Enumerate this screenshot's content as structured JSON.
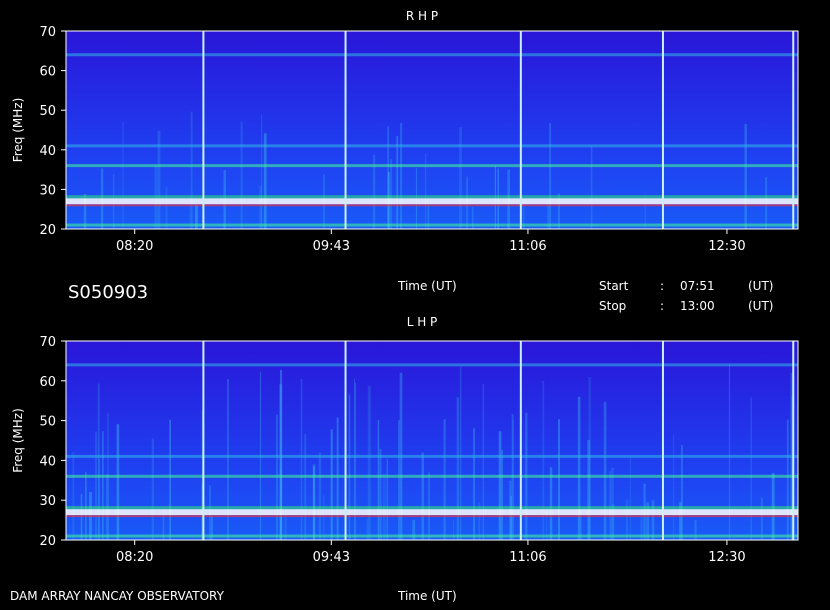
{
  "header": {
    "record_id": "S050903"
  },
  "info": {
    "time_axis_label": "Time (UT)",
    "start_label": "Start",
    "start_sep": ":",
    "start_time": "07:51",
    "start_unit": "(UT)",
    "stop_label": "Stop",
    "stop_sep": ":",
    "stop_time": "13:00",
    "stop_unit": "(UT)"
  },
  "footer": {
    "instrument": "DAM ARRAY  NANCAY OBSERVATORY",
    "time_axis_label": "Time (UT)"
  },
  "colors": {
    "background": "#000000",
    "base": "#2a1fe0",
    "marker": "#c8f0f0"
  },
  "chart_data": [
    {
      "type": "heatmap",
      "title": "R H P",
      "ylabel": "Freq (MHz)",
      "xlabel": "Time (UT)",
      "ylim": [
        20,
        70
      ],
      "yticks": [
        "20",
        "30",
        "40",
        "50",
        "60",
        "70"
      ],
      "xticks": [
        "08:20",
        "09:43",
        "11:06",
        "12:30"
      ],
      "time_range": [
        "07:51",
        "13:00"
      ],
      "marker_lines_ut": [
        "08:49",
        "09:49",
        "11:03",
        "12:03",
        "12:58"
      ],
      "emission_bands_mhz": [
        {
          "freq": 27,
          "intensity": "high"
        },
        {
          "freq": 21,
          "intensity": "medium"
        },
        {
          "freq": 36,
          "intensity": "medium"
        },
        {
          "freq": 41,
          "intensity": "low"
        },
        {
          "freq": 64,
          "intensity": "low"
        }
      ]
    },
    {
      "type": "heatmap",
      "title": "L H P",
      "ylabel": "Freq (MHz)",
      "xlabel": "Time (UT)",
      "ylim": [
        20,
        70
      ],
      "yticks": [
        "20",
        "30",
        "40",
        "50",
        "60",
        "70"
      ],
      "xticks": [
        "08:20",
        "09:43",
        "11:06",
        "12:30"
      ],
      "time_range": [
        "07:51",
        "13:00"
      ],
      "marker_lines_ut": [
        "08:49",
        "09:49",
        "11:03",
        "12:03",
        "12:58"
      ],
      "emission_bands_mhz": [
        {
          "freq": 27,
          "intensity": "high"
        },
        {
          "freq": 21,
          "intensity": "medium"
        },
        {
          "freq": 36,
          "intensity": "medium"
        },
        {
          "freq": 41,
          "intensity": "low"
        },
        {
          "freq": 64,
          "intensity": "low"
        }
      ]
    }
  ]
}
